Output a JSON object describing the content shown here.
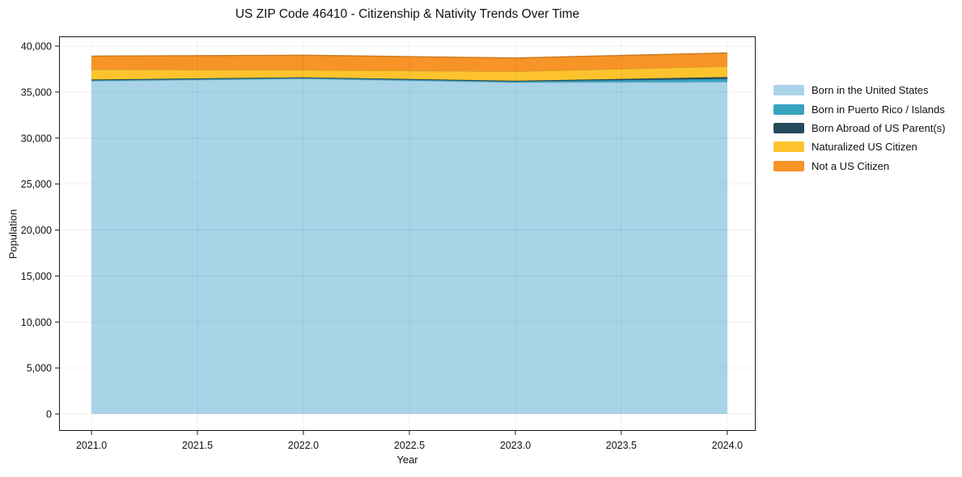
{
  "title": "US ZIP Code 46410 - Citizenship & Nativity Trends Over Time",
  "chart_data": {
    "type": "area",
    "stacked": true,
    "title": "US ZIP Code 46410 - Citizenship & Nativity Trends Over Time",
    "xlabel": "Year",
    "ylabel": "Population",
    "x": [
      2021.0,
      2022.0,
      2023.0,
      2024.0
    ],
    "series": [
      {
        "name": "Born in the United States",
        "color": "#a9d4e8",
        "values": [
          36200,
          36450,
          36050,
          36100
        ]
      },
      {
        "name": "Born in Puerto Rico / Islands",
        "color": "#38a3be",
        "values": [
          100,
          100,
          120,
          350
        ]
      },
      {
        "name": "Born Abroad of US Parent(s)",
        "color": "#254a5c",
        "values": [
          60,
          60,
          60,
          170
        ]
      },
      {
        "name": "Naturalized US Citizen",
        "color": "#fcc32d",
        "values": [
          1100,
          800,
          1020,
          1180
        ]
      },
      {
        "name": "Not a US Citizen",
        "color": "#f79327",
        "values": [
          1450,
          1600,
          1460,
          1450
        ]
      }
    ],
    "totals": [
      38910,
      39010,
      38710,
      39250
    ],
    "xlim": [
      2020.847,
      2024.134
    ],
    "ylim": [
      -1846,
      41055
    ],
    "x_tick_values": [
      2021.0,
      2021.5,
      2022.0,
      2022.5,
      2023.0,
      2023.5,
      2024.0
    ],
    "x_tick_labels": [
      "2021.0",
      "2021.5",
      "2022.0",
      "2022.5",
      "2023.0",
      "2023.5",
      "2024.0"
    ],
    "y_tick_values": [
      0,
      5000,
      10000,
      15000,
      20000,
      25000,
      30000,
      35000,
      40000
    ],
    "y_tick_labels": [
      "0",
      "5,000",
      "10,000",
      "15,000",
      "20,000",
      "25,000",
      "30,000",
      "35,000",
      "40,000"
    ],
    "grid": true,
    "legend_position": "right-outside",
    "colors": {
      "spine": "#1a1a1a",
      "tick": "#1a1a1a",
      "grid": "rgba(0,0,0,0.06)",
      "text": "#111111",
      "plot_background": "#ffffff"
    }
  }
}
